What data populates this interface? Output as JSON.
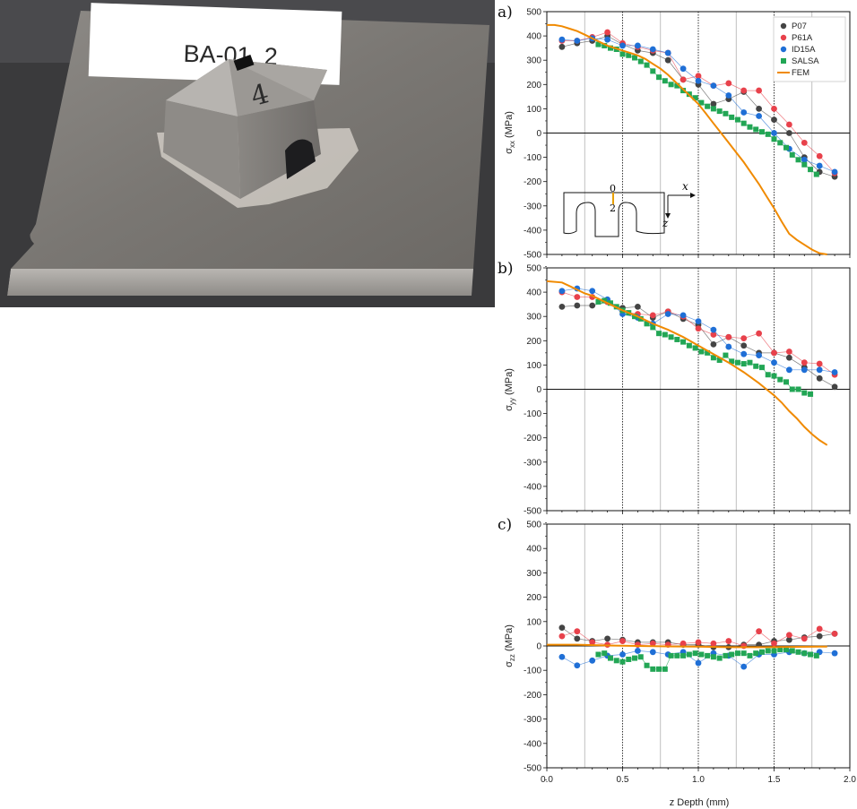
{
  "photo": {
    "specimen_label": "BA-01_2",
    "marking": "4"
  },
  "inset": {
    "label_0": "0",
    "label_2": "2",
    "x_axis": "x",
    "z_axis": "z"
  },
  "colors": {
    "P07": "#444444",
    "P61A": "#e8414b",
    "ID15A": "#1f6fd6",
    "SALSA": "#22a655",
    "FEM": "#f08a00"
  },
  "chart_data": [
    {
      "type": "scatter",
      "panel_label": "a)",
      "ylabel": "σxx (MPa)",
      "ylabel_main": "σ",
      "ylabel_sub": "xx",
      "ylabel_unit": " (MPa)",
      "xlim": [
        0.0,
        2.0
      ],
      "ylim": [
        -500,
        500
      ],
      "yticks": [
        500,
        400,
        300,
        200,
        100,
        0,
        -100,
        -200,
        -300,
        -400,
        -500
      ],
      "vlines_dotted": [
        0.5,
        1.0,
        1.5
      ],
      "vlines_thin": [
        0.25,
        0.75,
        1.25,
        1.75
      ],
      "legend": [
        "P07",
        "P61A",
        "ID15A",
        "SALSA",
        "FEM"
      ],
      "legend_position": "top-right",
      "series": [
        {
          "name": "P07",
          "x": [
            0.1,
            0.2,
            0.3,
            0.4,
            0.5,
            0.6,
            0.7,
            0.8,
            0.9,
            1.0,
            1.1,
            1.2,
            1.3,
            1.4,
            1.5,
            1.6,
            1.7,
            1.8,
            1.9
          ],
          "y": [
            355,
            370,
            380,
            400,
            365,
            340,
            330,
            300,
            220,
            200,
            120,
            140,
            170,
            100,
            55,
            0,
            -100,
            -160,
            -180
          ]
        },
        {
          "name": "P61A",
          "x": [
            0.1,
            0.2,
            0.3,
            0.4,
            0.5,
            0.6,
            0.7,
            0.8,
            0.9,
            1.0,
            1.1,
            1.2,
            1.3,
            1.4,
            1.5,
            1.6,
            1.7,
            1.8,
            1.9
          ],
          "y": [
            380,
            380,
            395,
            415,
            370,
            355,
            340,
            330,
            220,
            235,
            195,
            205,
            175,
            175,
            100,
            35,
            -40,
            -95,
            -165
          ]
        },
        {
          "name": "ID15A",
          "x": [
            0.1,
            0.2,
            0.3,
            0.4,
            0.5,
            0.6,
            0.7,
            0.8,
            0.9,
            1.0,
            1.1,
            1.2,
            1.3,
            1.4,
            1.5,
            1.6,
            1.7,
            1.8,
            1.9
          ],
          "y": [
            385,
            380,
            390,
            385,
            360,
            360,
            345,
            330,
            265,
            215,
            195,
            155,
            85,
            70,
            0,
            -65,
            -110,
            -135,
            -160
          ]
        },
        {
          "name": "SALSA",
          "x": [
            0.34,
            0.38,
            0.42,
            0.46,
            0.5,
            0.54,
            0.58,
            0.62,
            0.66,
            0.7,
            0.74,
            0.78,
            0.82,
            0.86,
            0.9,
            0.94,
            0.98,
            1.02,
            1.06,
            1.1,
            1.14,
            1.18,
            1.22,
            1.26,
            1.3,
            1.34,
            1.38,
            1.42,
            1.46,
            1.5,
            1.54,
            1.58,
            1.62,
            1.66,
            1.7,
            1.74,
            1.78
          ],
          "y": [
            365,
            360,
            350,
            345,
            325,
            320,
            310,
            295,
            280,
            255,
            230,
            215,
            200,
            195,
            175,
            160,
            145,
            125,
            110,
            100,
            90,
            80,
            65,
            55,
            40,
            25,
            15,
            5,
            -5,
            -25,
            -40,
            -60,
            -90,
            -110,
            -130,
            -150,
            -170
          ]
        },
        {
          "name": "FEM",
          "type": "line",
          "x": [
            0.0,
            0.05,
            0.1,
            0.15,
            0.2,
            0.25,
            0.3,
            0.35,
            0.4,
            0.45,
            0.5,
            0.55,
            0.6,
            0.65,
            0.7,
            0.75,
            0.8,
            0.85,
            0.9,
            0.95,
            1.0,
            1.05,
            1.1,
            1.15,
            1.2,
            1.25,
            1.3,
            1.35,
            1.4,
            1.45,
            1.5,
            1.55,
            1.6,
            1.65,
            1.7,
            1.75,
            1.8,
            1.85
          ],
          "y": [
            445,
            445,
            440,
            430,
            420,
            405,
            390,
            375,
            360,
            350,
            340,
            330,
            320,
            305,
            285,
            265,
            240,
            210,
            180,
            150,
            120,
            80,
            40,
            0,
            -40,
            -80,
            -120,
            -165,
            -210,
            -260,
            -310,
            -365,
            -415,
            -440,
            -460,
            -480,
            -495,
            -500
          ]
        }
      ]
    },
    {
      "type": "scatter",
      "panel_label": "b)",
      "ylabel": "σyy (MPa)",
      "ylabel_main": "σ",
      "ylabel_sub": "yy",
      "ylabel_unit": " (MPa)",
      "xlim": [
        0.0,
        2.0
      ],
      "ylim": [
        -500,
        500
      ],
      "yticks": [
        500,
        400,
        300,
        200,
        100,
        0,
        -100,
        -200,
        -300,
        -400,
        -500
      ],
      "vlines_dotted": [
        0.5,
        1.0,
        1.5
      ],
      "vlines_thin": [
        0.25,
        0.75,
        1.25,
        1.75
      ],
      "series": [
        {
          "name": "P07",
          "x": [
            0.1,
            0.2,
            0.3,
            0.4,
            0.5,
            0.6,
            0.7,
            0.8,
            0.9,
            1.0,
            1.1,
            1.2,
            1.3,
            1.4,
            1.5,
            1.6,
            1.7,
            1.8,
            1.9
          ],
          "y": [
            340,
            345,
            345,
            360,
            335,
            340,
            295,
            320,
            290,
            265,
            185,
            215,
            180,
            150,
            150,
            130,
            90,
            45,
            10
          ]
        },
        {
          "name": "P61A",
          "x": [
            0.1,
            0.2,
            0.3,
            0.4,
            0.5,
            0.6,
            0.7,
            0.8,
            0.9,
            1.0,
            1.1,
            1.2,
            1.3,
            1.4,
            1.5,
            1.6,
            1.7,
            1.8,
            1.9
          ],
          "y": [
            400,
            380,
            380,
            360,
            320,
            310,
            305,
            320,
            300,
            250,
            225,
            215,
            210,
            230,
            150,
            155,
            110,
            105,
            60
          ]
        },
        {
          "name": "ID15A",
          "x": [
            0.1,
            0.2,
            0.3,
            0.4,
            0.5,
            0.6,
            0.7,
            0.8,
            0.9,
            1.0,
            1.1,
            1.2,
            1.3,
            1.4,
            1.5,
            1.6,
            1.7,
            1.8,
            1.9
          ],
          "y": [
            405,
            415,
            405,
            370,
            310,
            295,
            270,
            310,
            305,
            280,
            245,
            175,
            145,
            140,
            110,
            80,
            80,
            80,
            70
          ]
        },
        {
          "name": "SALSA",
          "x": [
            0.34,
            0.38,
            0.42,
            0.46,
            0.5,
            0.54,
            0.58,
            0.62,
            0.66,
            0.7,
            0.74,
            0.78,
            0.82,
            0.86,
            0.9,
            0.94,
            0.98,
            1.02,
            1.06,
            1.1,
            1.14,
            1.18,
            1.22,
            1.26,
            1.3,
            1.34,
            1.38,
            1.42,
            1.46,
            1.5,
            1.54,
            1.58,
            1.62,
            1.66,
            1.7,
            1.74
          ],
          "y": [
            360,
            365,
            355,
            340,
            325,
            315,
            300,
            290,
            270,
            255,
            230,
            225,
            215,
            205,
            195,
            180,
            170,
            155,
            150,
            130,
            120,
            140,
            115,
            110,
            105,
            110,
            95,
            90,
            60,
            55,
            40,
            30,
            0,
            0,
            -15,
            -20
          ]
        },
        {
          "name": "FEM",
          "type": "line",
          "x": [
            0.0,
            0.1,
            0.15,
            0.2,
            0.25,
            0.3,
            0.35,
            0.4,
            0.5,
            0.6,
            0.7,
            0.8,
            0.9,
            1.0,
            1.1,
            1.2,
            1.3,
            1.4,
            1.45,
            1.5,
            1.55,
            1.6,
            1.65,
            1.7,
            1.75,
            1.8,
            1.85
          ],
          "y": [
            445,
            440,
            425,
            410,
            395,
            385,
            370,
            355,
            325,
            300,
            270,
            245,
            215,
            180,
            145,
            110,
            70,
            25,
            0,
            -25,
            -55,
            -90,
            -120,
            -155,
            -185,
            -210,
            -230
          ]
        }
      ]
    },
    {
      "type": "scatter",
      "panel_label": "c)",
      "ylabel": "σzz (MPa)",
      "ylabel_main": "σ",
      "ylabel_sub": "zz",
      "ylabel_unit": " (MPa)",
      "xlabel": "z Depth (mm)",
      "xlim": [
        0.0,
        2.0
      ],
      "ylim": [
        -500,
        500
      ],
      "yticks": [
        500,
        400,
        300,
        200,
        100,
        0,
        -100,
        -200,
        -300,
        -400,
        -500
      ],
      "xticks": [
        "0.0",
        "0.5",
        "1.0",
        "1.5",
        "2.0"
      ],
      "vlines_dotted": [
        0.5,
        1.0,
        1.5
      ],
      "vlines_thin": [
        0.25,
        0.75,
        1.25,
        1.75
      ],
      "series": [
        {
          "name": "P07",
          "x": [
            0.1,
            0.2,
            0.3,
            0.4,
            0.5,
            0.6,
            0.7,
            0.8,
            0.9,
            1.0,
            1.1,
            1.2,
            1.3,
            1.4,
            1.5,
            1.6,
            1.7,
            1.8,
            1.9
          ],
          "y": [
            75,
            30,
            20,
            30,
            25,
            15,
            15,
            15,
            5,
            5,
            -5,
            -5,
            5,
            5,
            20,
            25,
            35,
            40,
            50
          ]
        },
        {
          "name": "P61A",
          "x": [
            0.1,
            0.2,
            0.3,
            0.4,
            0.5,
            0.6,
            0.7,
            0.8,
            0.9,
            1.0,
            1.1,
            1.2,
            1.3,
            1.4,
            1.5,
            1.6,
            1.7,
            1.8,
            1.9
          ],
          "y": [
            40,
            60,
            15,
            5,
            20,
            5,
            10,
            5,
            10,
            15,
            10,
            20,
            0,
            60,
            10,
            45,
            30,
            70,
            50
          ]
        },
        {
          "name": "ID15A",
          "x": [
            0.1,
            0.2,
            0.3,
            0.4,
            0.5,
            0.6,
            0.7,
            0.8,
            0.9,
            1.0,
            1.1,
            1.2,
            1.3,
            1.4,
            1.5,
            1.6,
            1.7,
            1.8,
            1.9
          ],
          "y": [
            -45,
            -80,
            -60,
            -40,
            -35,
            -20,
            -25,
            -35,
            -25,
            -70,
            -30,
            -40,
            -85,
            -35,
            -35,
            -25,
            -30,
            -25,
            -30
          ]
        },
        {
          "name": "SALSA",
          "x": [
            0.34,
            0.38,
            0.42,
            0.46,
            0.5,
            0.54,
            0.58,
            0.62,
            0.66,
            0.7,
            0.74,
            0.78,
            0.82,
            0.86,
            0.9,
            0.94,
            0.98,
            1.02,
            1.06,
            1.1,
            1.14,
            1.18,
            1.22,
            1.26,
            1.3,
            1.34,
            1.38,
            1.42,
            1.46,
            1.5,
            1.54,
            1.58,
            1.62,
            1.66,
            1.7,
            1.74,
            1.78
          ],
          "y": [
            -35,
            -30,
            -50,
            -60,
            -65,
            -55,
            -50,
            -45,
            -80,
            -95,
            -95,
            -95,
            -40,
            -40,
            -40,
            -35,
            -30,
            -35,
            -40,
            -45,
            -50,
            -40,
            -35,
            -30,
            -30,
            -40,
            -30,
            -25,
            -20,
            -20,
            -15,
            -15,
            -20,
            -25,
            -30,
            -35,
            -40
          ]
        },
        {
          "name": "FEM",
          "type": "line",
          "x": [
            0.0,
            0.2,
            0.4,
            0.6,
            0.8,
            1.0,
            1.2,
            1.4,
            1.6,
            1.8,
            1.85
          ],
          "y": [
            5,
            5,
            2,
            0,
            -2,
            -3,
            -5,
            -5,
            -4,
            -3,
            -3
          ]
        }
      ]
    }
  ]
}
